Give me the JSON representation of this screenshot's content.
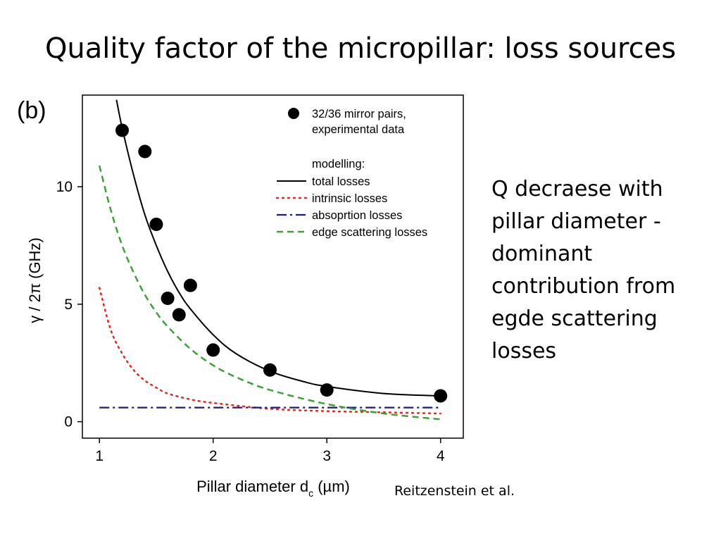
{
  "slide": {
    "title": "Quality factor of the micropillar:  loss sources",
    "panel_label": "(b)",
    "bullet_text": "Q decraese with pillar diameter - dominant contribution from egde scattering losses",
    "citation": "Reitzenstein et al."
  },
  "chart_data": {
    "type": "scatter",
    "xlabel": "Pillar diameter d",
    "xlabel_sub": "c",
    "xlabel_unit": " (µm)",
    "ylabel": "γ / 2π (GHz)",
    "xlim": [
      0.85,
      4.2
    ],
    "ylim": [
      -0.7,
      13.9
    ],
    "x_ticks": [
      1,
      2,
      3,
      4
    ],
    "y_ticks": [
      0,
      5,
      10
    ],
    "grid": false,
    "legend_placement": "top-right",
    "legend_modelling_header": "modelling:",
    "series": [
      {
        "name": "32/36 mirror pairs, experimental data",
        "legend_lines": [
          "32/36 mirror pairs,",
          "experimental data"
        ],
        "kind": "points",
        "color": "#000000",
        "x": [
          1.2,
          1.4,
          1.5,
          1.6,
          1.7,
          1.8,
          2.0,
          2.5,
          3.0,
          4.0
        ],
        "y": [
          12.4,
          11.5,
          8.4,
          5.25,
          4.55,
          5.8,
          3.05,
          2.2,
          1.35,
          1.1
        ]
      },
      {
        "name": "total losses",
        "kind": "line",
        "style": "solid",
        "color": "#000000",
        "x": [
          1.15,
          1.2,
          1.3,
          1.4,
          1.5,
          1.6,
          1.7,
          1.8,
          2.0,
          2.2,
          2.5,
          2.8,
          3.0,
          3.5,
          4.0
        ],
        "y": [
          13.7,
          12.5,
          10.5,
          8.8,
          7.5,
          6.4,
          5.5,
          4.8,
          3.7,
          2.9,
          2.15,
          1.7,
          1.5,
          1.2,
          1.1
        ]
      },
      {
        "name": "intrinsic losses",
        "kind": "line",
        "style": "dotted",
        "color": "#e8261c",
        "x": [
          1.0,
          1.1,
          1.2,
          1.3,
          1.4,
          1.5,
          1.6,
          1.8,
          2.0,
          2.5,
          3.0,
          3.5,
          4.0
        ],
        "y": [
          5.7,
          3.9,
          2.9,
          2.2,
          1.75,
          1.45,
          1.2,
          0.95,
          0.8,
          0.55,
          0.45,
          0.4,
          0.35
        ]
      },
      {
        "name": "absoprtion losses",
        "kind": "line",
        "style": "dashdot",
        "color": "#1a1a80",
        "x": [
          1.0,
          4.0
        ],
        "y": [
          0.6,
          0.6
        ]
      },
      {
        "name": "edge scattering losses",
        "kind": "line",
        "style": "dashed",
        "color": "#3aa335",
        "x": [
          1.0,
          1.1,
          1.2,
          1.3,
          1.4,
          1.5,
          1.6,
          1.8,
          2.0,
          2.2,
          2.5,
          3.0,
          3.5,
          4.0
        ],
        "y": [
          10.9,
          9.0,
          7.5,
          6.35,
          5.4,
          4.65,
          4.05,
          3.1,
          2.4,
          1.9,
          1.35,
          0.75,
          0.35,
          0.1
        ]
      }
    ]
  }
}
